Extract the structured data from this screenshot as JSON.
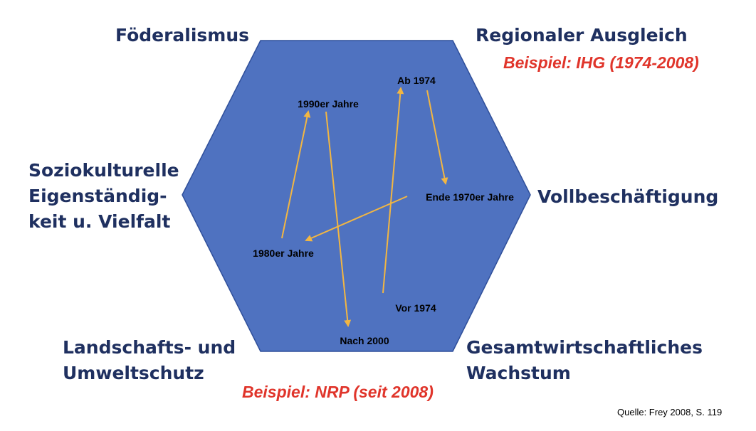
{
  "corners": {
    "top_left": "Föderalismus",
    "top_right": "Regionaler Ausgleich",
    "left": [
      "Soziokulturelle",
      "Eigenständig-",
      "keit u. Vielfalt"
    ],
    "right": "Vollbeschäftigung",
    "bottom_left": [
      "Landschafts- und",
      "Umweltschutz"
    ],
    "bottom_right": [
      "Gesamtwirtschaftliches",
      "Wachstum"
    ]
  },
  "examples": {
    "top": "Beispiel: IHG (1974-2008)",
    "bottom": "Beispiel: NRP (seit 2008)"
  },
  "phases": {
    "vor_1974": "Vor 1974",
    "ab_1974": "Ab 1974",
    "ende_1970er": "Ende 1970er Jahre",
    "j1980er": "1980er Jahre",
    "j1990er": "1990er Jahre",
    "nach_2000": "Nach 2000"
  },
  "source": "Quelle: Frey 2008, S. 119",
  "colors": {
    "hexagon_fill": "#4f72c0",
    "hexagon_stroke": "#2f4f9a",
    "arrow": "#f2b642",
    "corner_text": "#1f3060",
    "example_text": "#e0352b"
  }
}
